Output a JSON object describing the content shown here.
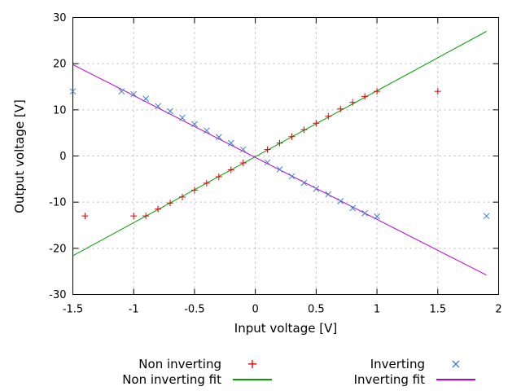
{
  "chart_data": {
    "type": "scatter",
    "title": "",
    "xlabel": "Input voltage [V]",
    "ylabel": "Output voltage [V]",
    "xlim": [
      -1.5,
      2
    ],
    "ylim": [
      -30,
      30
    ],
    "x_ticks": [
      -1.5,
      -1,
      -0.5,
      0,
      0.5,
      1,
      1.5,
      2
    ],
    "x_tick_labels": [
      "-1.5",
      "-1",
      "-0.5",
      "0",
      "0.5",
      "1",
      "1.5",
      "2"
    ],
    "y_ticks": [
      -30,
      -20,
      -10,
      0,
      10,
      20,
      30
    ],
    "y_tick_labels": [
      "-30",
      "-20",
      "-10",
      "0",
      "10",
      "20",
      "30"
    ],
    "grid": true,
    "grid_style": "dashed-gray",
    "legend_position": "below-plot-two-columns",
    "series": [
      {
        "name": "Non inverting",
        "type": "points",
        "marker": "plus",
        "marker_glyph": "+",
        "color": "#dd0000",
        "points": [
          [
            -1.4,
            -13.0
          ],
          [
            -1.0,
            -13.0
          ],
          [
            -0.9,
            -13.0
          ],
          [
            -0.8,
            -11.5
          ],
          [
            -0.7,
            -10.2
          ],
          [
            -0.6,
            -8.9
          ],
          [
            -0.5,
            -7.4
          ],
          [
            -0.4,
            -5.9
          ],
          [
            -0.3,
            -4.5
          ],
          [
            -0.2,
            -3.0
          ],
          [
            -0.1,
            -1.5
          ],
          [
            0.1,
            1.4
          ],
          [
            0.2,
            2.8
          ],
          [
            0.3,
            4.2
          ],
          [
            0.4,
            5.7
          ],
          [
            0.5,
            7.1
          ],
          [
            0.6,
            8.6
          ],
          [
            0.7,
            10.2
          ],
          [
            0.8,
            11.6
          ],
          [
            0.9,
            12.9
          ],
          [
            1.0,
            14.0
          ],
          [
            1.5,
            14.0
          ]
        ]
      },
      {
        "name": "Inverting",
        "type": "points",
        "marker": "cross",
        "marker_glyph": "×",
        "color": "#3b7dd8",
        "points": [
          [
            -1.5,
            14.0
          ],
          [
            -1.1,
            14.0
          ],
          [
            -1.0,
            13.4
          ],
          [
            -0.9,
            12.4
          ],
          [
            -0.8,
            10.8
          ],
          [
            -0.7,
            9.7
          ],
          [
            -0.6,
            8.3
          ],
          [
            -0.5,
            6.9
          ],
          [
            -0.4,
            5.5
          ],
          [
            -0.3,
            4.1
          ],
          [
            -0.2,
            2.8
          ],
          [
            -0.1,
            1.4
          ],
          [
            0.1,
            -1.4
          ],
          [
            0.2,
            -2.9
          ],
          [
            0.3,
            -4.4
          ],
          [
            0.4,
            -5.8
          ],
          [
            0.5,
            -7.1
          ],
          [
            0.6,
            -8.3
          ],
          [
            0.7,
            -9.8
          ],
          [
            0.8,
            -11.3
          ],
          [
            0.9,
            -12.4
          ],
          [
            1.0,
            -13.1
          ],
          [
            1.9,
            -13.0
          ]
        ]
      },
      {
        "name": "Non inverting fit",
        "type": "line",
        "color": "#00a000",
        "points": [
          [
            -1.5,
            -21.6
          ],
          [
            1.9,
            27.0
          ]
        ]
      },
      {
        "name": "Inverting fit",
        "type": "line",
        "color": "#b800d8",
        "points": [
          [
            -1.5,
            19.8
          ],
          [
            1.9,
            -25.8
          ]
        ]
      }
    ],
    "colors": {
      "background": "#ffffff",
      "border": "#000000",
      "grid": "#b4b4b4",
      "text": "#000000"
    }
  }
}
